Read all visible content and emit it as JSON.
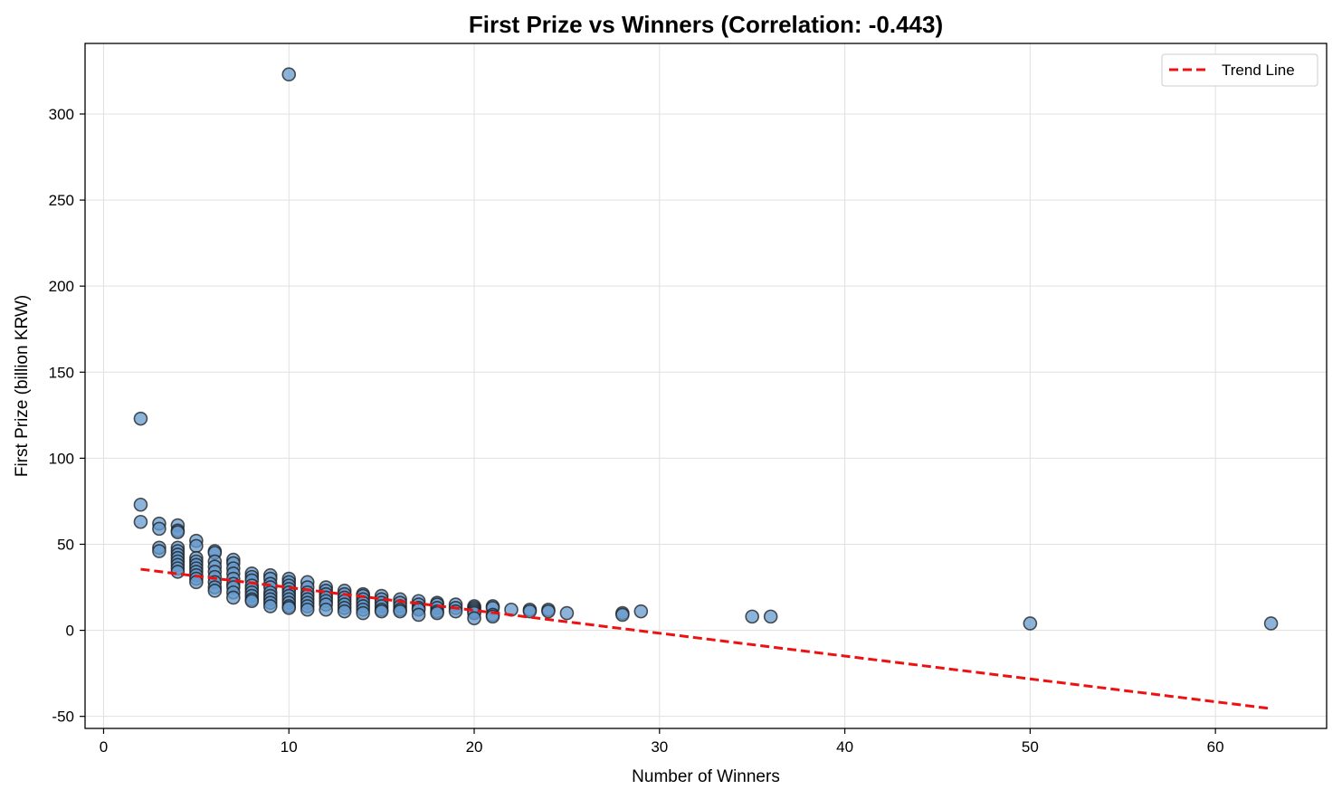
{
  "chart_data": {
    "type": "scatter",
    "title": "First Prize vs Winners (Correlation: -0.443)",
    "xlabel": "Number of Winners",
    "ylabel": "First Prize (billion KRW)",
    "xlim": [
      -1,
      66
    ],
    "ylim": [
      -57,
      341
    ],
    "xticks": [
      0,
      10,
      20,
      30,
      40,
      50,
      60
    ],
    "yticks": [
      -50,
      0,
      50,
      100,
      150,
      200,
      250,
      300
    ],
    "grid": true,
    "legend": {
      "placement": "top-right",
      "entries": [
        "Trend Line"
      ]
    },
    "colors": {
      "points_fill": "#6699cc",
      "points_edge": "#1a1a1a",
      "trend": "#ee1111",
      "grid": "#e0e0e0"
    },
    "series": [
      {
        "type": "scatter",
        "points": [
          [
            2,
            123
          ],
          [
            2,
            73
          ],
          [
            2,
            63
          ],
          [
            3,
            62
          ],
          [
            3,
            59
          ],
          [
            3,
            48
          ],
          [
            3,
            46
          ],
          [
            4,
            61
          ],
          [
            4,
            58
          ],
          [
            4,
            57
          ],
          [
            4,
            48
          ],
          [
            4,
            46
          ],
          [
            4,
            44
          ],
          [
            4,
            42
          ],
          [
            4,
            40
          ],
          [
            4,
            38
          ],
          [
            4,
            36
          ],
          [
            4,
            34
          ],
          [
            5,
            52
          ],
          [
            5,
            49
          ],
          [
            5,
            42
          ],
          [
            5,
            40
          ],
          [
            5,
            38
          ],
          [
            5,
            36
          ],
          [
            5,
            34
          ],
          [
            5,
            32
          ],
          [
            5,
            30
          ],
          [
            5,
            28
          ],
          [
            6,
            46
          ],
          [
            6,
            45
          ],
          [
            6,
            40
          ],
          [
            6,
            37
          ],
          [
            6,
            34
          ],
          [
            6,
            31
          ],
          [
            6,
            28
          ],
          [
            6,
            25
          ],
          [
            6,
            23
          ],
          [
            7,
            41
          ],
          [
            7,
            39
          ],
          [
            7,
            36
          ],
          [
            7,
            33
          ],
          [
            7,
            30
          ],
          [
            7,
            27
          ],
          [
            7,
            25
          ],
          [
            7,
            22
          ],
          [
            7,
            19
          ],
          [
            8,
            33
          ],
          [
            8,
            31
          ],
          [
            8,
            29
          ],
          [
            8,
            26
          ],
          [
            8,
            24
          ],
          [
            8,
            22
          ],
          [
            8,
            20
          ],
          [
            8,
            18
          ],
          [
            8,
            17
          ],
          [
            9,
            32
          ],
          [
            9,
            30
          ],
          [
            9,
            27
          ],
          [
            9,
            25
          ],
          [
            9,
            22
          ],
          [
            9,
            20
          ],
          [
            9,
            18
          ],
          [
            9,
            16
          ],
          [
            9,
            14
          ],
          [
            10,
            323
          ],
          [
            10,
            30
          ],
          [
            10,
            28
          ],
          [
            10,
            26
          ],
          [
            10,
            24
          ],
          [
            10,
            22
          ],
          [
            10,
            20
          ],
          [
            10,
            18
          ],
          [
            10,
            16
          ],
          [
            10,
            14
          ],
          [
            10,
            13
          ],
          [
            11,
            28
          ],
          [
            11,
            25
          ],
          [
            11,
            22
          ],
          [
            11,
            20
          ],
          [
            11,
            18
          ],
          [
            11,
            16
          ],
          [
            11,
            14
          ],
          [
            11,
            12
          ],
          [
            12,
            25
          ],
          [
            12,
            23
          ],
          [
            12,
            21
          ],
          [
            12,
            19
          ],
          [
            12,
            17
          ],
          [
            12,
            15
          ],
          [
            12,
            12
          ],
          [
            13,
            23
          ],
          [
            13,
            21
          ],
          [
            13,
            19
          ],
          [
            13,
            17
          ],
          [
            13,
            15
          ],
          [
            13,
            13
          ],
          [
            13,
            11
          ],
          [
            14,
            21
          ],
          [
            14,
            20
          ],
          [
            14,
            18
          ],
          [
            14,
            16
          ],
          [
            14,
            14
          ],
          [
            14,
            12
          ],
          [
            14,
            10
          ],
          [
            15,
            20
          ],
          [
            15,
            18
          ],
          [
            15,
            16
          ],
          [
            15,
            14
          ],
          [
            15,
            12
          ],
          [
            15,
            11
          ],
          [
            16,
            18
          ],
          [
            16,
            16
          ],
          [
            16,
            14
          ],
          [
            16,
            12
          ],
          [
            16,
            11
          ],
          [
            17,
            17
          ],
          [
            17,
            15
          ],
          [
            17,
            13
          ],
          [
            17,
            12
          ],
          [
            17,
            9
          ],
          [
            18,
            16
          ],
          [
            18,
            15
          ],
          [
            18,
            13
          ],
          [
            18,
            11
          ],
          [
            18,
            10
          ],
          [
            19,
            15
          ],
          [
            19,
            13
          ],
          [
            19,
            11
          ],
          [
            20,
            14
          ],
          [
            20,
            13
          ],
          [
            20,
            12
          ],
          [
            20,
            11
          ],
          [
            20,
            10
          ],
          [
            20,
            7
          ],
          [
            21,
            14
          ],
          [
            21,
            13
          ],
          [
            21,
            9
          ],
          [
            21,
            8
          ],
          [
            22,
            12
          ],
          [
            23,
            12
          ],
          [
            23,
            11
          ],
          [
            24,
            12
          ],
          [
            24,
            11
          ],
          [
            25,
            10
          ],
          [
            28,
            10
          ],
          [
            28,
            9
          ],
          [
            29,
            11
          ],
          [
            35,
            8
          ],
          [
            36,
            8
          ],
          [
            50,
            4
          ],
          [
            63,
            4
          ]
        ]
      },
      {
        "name": "Trend Line",
        "type": "line",
        "x": [
          2,
          63
        ],
        "y": [
          35.5,
          -45.5
        ]
      }
    ]
  }
}
